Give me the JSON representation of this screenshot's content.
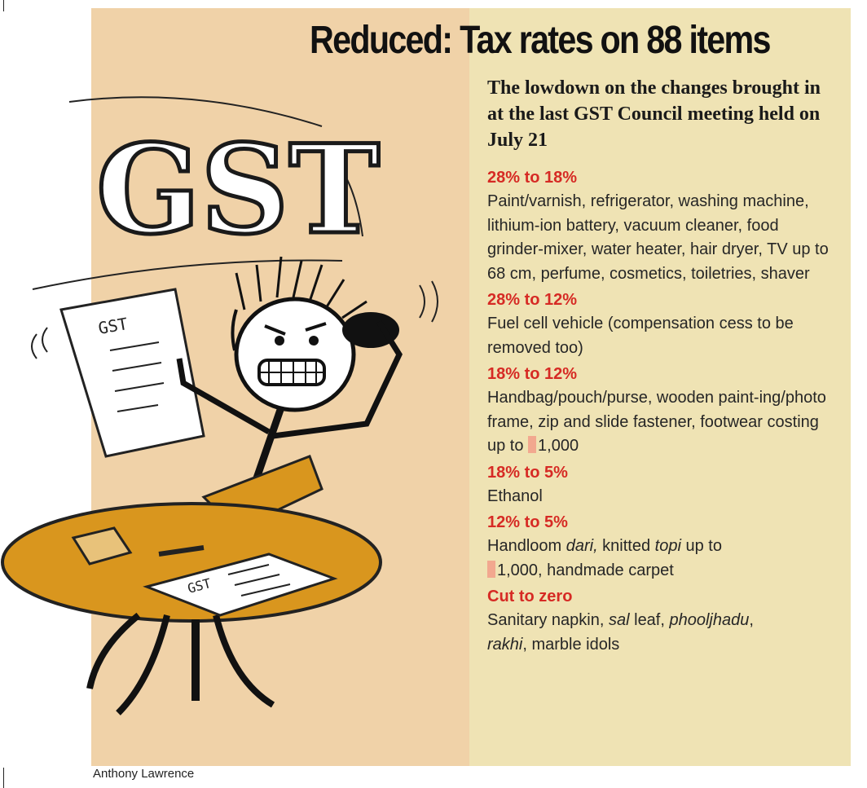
{
  "headline": "Reduced: Tax rates on 88 items",
  "subhead": "The lowdown on the changes brought in at the last GST Council meeting held on July 21",
  "sections": [
    {
      "heading": "28% to 18%",
      "items": "Paint/varnish, refrigerator, washing machine, lithium-ion battery, vacuum cleaner, food grinder-mixer, water heater, hair dryer, TV up to 68 cm, perfume, cosmetics, toiletries, shaver"
    },
    {
      "heading": "28% to 12%",
      "items": "Fuel cell vehicle (compensation cess to be removed too)"
    },
    {
      "heading": "18% to 12%",
      "items_pre": "Handbag/pouch/purse, wooden paint-ing/photo frame, zip and slide fastener, footwear costing up to ",
      "items_amount": "1,000"
    },
    {
      "heading": "18% to 5%",
      "items": "Ethanol"
    },
    {
      "heading": "12% to 5%",
      "items_a": "Handloom ",
      "items_b": "dari,",
      "items_c": " knitted ",
      "items_d": "topi",
      "items_e": " up to",
      "items_amount": "1,000, handmade carpet"
    },
    {
      "heading": "Cut to zero",
      "items_a": "Sanitary napkin, ",
      "items_b": "sal",
      "items_c": " leaf, ",
      "items_d": "phooljhadu",
      "items_e": ",",
      "items_f": "rakhi",
      "items_g": ", marble idols"
    }
  ],
  "illustration": {
    "big_letters": "GST",
    "paper_label": "GST",
    "table_paper_label": "GST"
  },
  "credit": "Anthony Lawrence",
  "colors": {
    "accent_red": "#d62a24",
    "left_bg": "#f0d2a8",
    "right_bg": "#efe3b4",
    "table": "#d9961e"
  }
}
